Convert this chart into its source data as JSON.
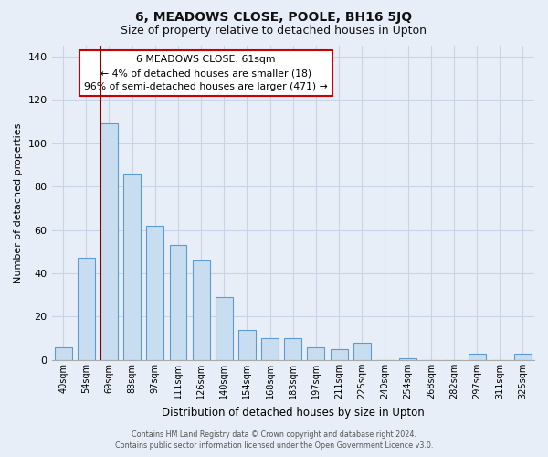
{
  "title": "6, MEADOWS CLOSE, POOLE, BH16 5JQ",
  "subtitle": "Size of property relative to detached houses in Upton",
  "xlabel": "Distribution of detached houses by size in Upton",
  "ylabel": "Number of detached properties",
  "bar_labels": [
    "40sqm",
    "54sqm",
    "69sqm",
    "83sqm",
    "97sqm",
    "111sqm",
    "126sqm",
    "140sqm",
    "154sqm",
    "168sqm",
    "183sqm",
    "197sqm",
    "211sqm",
    "225sqm",
    "240sqm",
    "254sqm",
    "268sqm",
    "282sqm",
    "297sqm",
    "311sqm",
    "325sqm"
  ],
  "bar_values": [
    6,
    47,
    109,
    86,
    62,
    53,
    46,
    29,
    14,
    10,
    10,
    6,
    5,
    8,
    0,
    1,
    0,
    0,
    3,
    0,
    3
  ],
  "bar_color": "#c9ddf0",
  "bar_edge_color": "#5b9bd5",
  "highlight_bar_index": 2,
  "highlight_color": "#8b0000",
  "ylim": [
    0,
    145
  ],
  "yticks": [
    0,
    20,
    40,
    60,
    80,
    100,
    120,
    140
  ],
  "annotation_text": "6 MEADOWS CLOSE: 61sqm\n← 4% of detached houses are smaller (18)\n96% of semi-detached houses are larger (471) →",
  "annotation_box_facecolor": "#ffffff",
  "annotation_box_edgecolor": "#cc0000",
  "footer_line1": "Contains HM Land Registry data © Crown copyright and database right 2024.",
  "footer_line2": "Contains public sector information licensed under the Open Government Licence v3.0.",
  "background_color": "#e8eef7",
  "plot_bg_color": "#e8eef7",
  "grid_color": "#c8d4e8",
  "bar_width": 0.75,
  "title_fontsize": 10,
  "subtitle_fontsize": 9
}
